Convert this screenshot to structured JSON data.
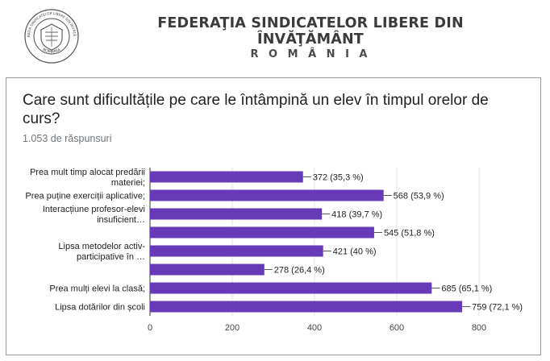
{
  "header": {
    "org_name": "FEDERAŢIA SINDICATELOR LIBERE DIN ÎNVĂŢĂMÂNT",
    "country": "R O M Â N I A",
    "logo_icon": "union-seal-icon",
    "logo_ring_text_top": "FEDERAŢIA SINDICATELOR LIBERE DIN ÎNVĂŢĂMÂNT",
    "logo_ring_text_bottom": "ROMÂNIA"
  },
  "question": {
    "title": "Care sunt dificultățile pe care le întâmpină un elev în timpul orelor de curs?",
    "responses": "1.053 de răspunsuri"
  },
  "colors": {
    "bar": "#673ab7",
    "grid": "#e6e6e6"
  },
  "chart_data": {
    "type": "bar",
    "orientation": "horizontal",
    "categories": [
      [
        "Prea mult timp alocat predării",
        "materiei;"
      ],
      [
        "Prea puține exerciții aplicative;"
      ],
      [
        "Interacțiune profesor-elevi",
        "insuficient…"
      ],
      [],
      [
        "Lipsa metodelor activ-",
        "participative în …"
      ],
      [],
      [
        "Prea mulți elevi la clasă;"
      ],
      [
        "Lipsa dotărilor din școli"
      ]
    ],
    "values": [
      372,
      568,
      418,
      545,
      421,
      278,
      685,
      759
    ],
    "value_labels": [
      "372 (35,3 %)",
      "568 (53,9 %)",
      "418 (39,7 %)",
      "545 (51,8 %)",
      "421 (40 %)",
      "278 (26,4 %)",
      "685 (65,1 %)",
      "759 (72,1 %)"
    ],
    "xlim": [
      0,
      800
    ],
    "x_ticks": [
      0,
      200,
      400,
      600,
      800
    ],
    "grid": true
  }
}
